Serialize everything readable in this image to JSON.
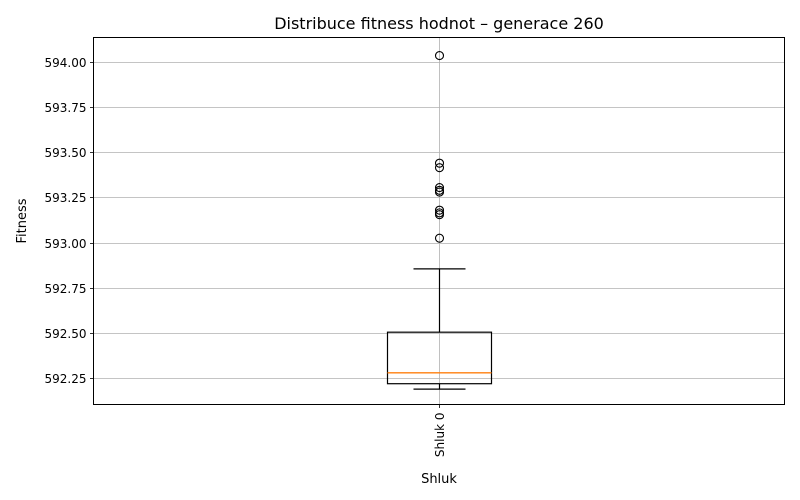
{
  "chart_data": {
    "type": "boxplot",
    "title": "Distribuce fitness hodnot – generace 260",
    "xlabel": "Shluk",
    "ylabel": "Fitness",
    "ylim": [
      592.105,
      594.135
    ],
    "yticks": [
      {
        "value": 592.25,
        "label": "592.25"
      },
      {
        "value": 592.5,
        "label": "592.50"
      },
      {
        "value": 592.75,
        "label": "592.75"
      },
      {
        "value": 593.0,
        "label": "593.00"
      },
      {
        "value": 593.25,
        "label": "593.25"
      },
      {
        "value": 593.5,
        "label": "593.50"
      },
      {
        "value": 593.75,
        "label": "593.75"
      },
      {
        "value": 594.0,
        "label": "594.00"
      }
    ],
    "grid": true,
    "categories": [
      "Shluk 0"
    ],
    "boxes": [
      {
        "category": "Shluk 0",
        "whisker_low": 592.19,
        "q1": 592.22,
        "median": 592.28,
        "q3": 592.505,
        "whisker_high": 592.855,
        "outliers": [
          593.025,
          593.155,
          593.165,
          593.18,
          593.28,
          593.29,
          593.305,
          593.415,
          593.44,
          594.035
        ]
      }
    ],
    "colors": {
      "median": "#ff7f0e",
      "box": "#000000",
      "grid": "#b0b0b0"
    }
  }
}
